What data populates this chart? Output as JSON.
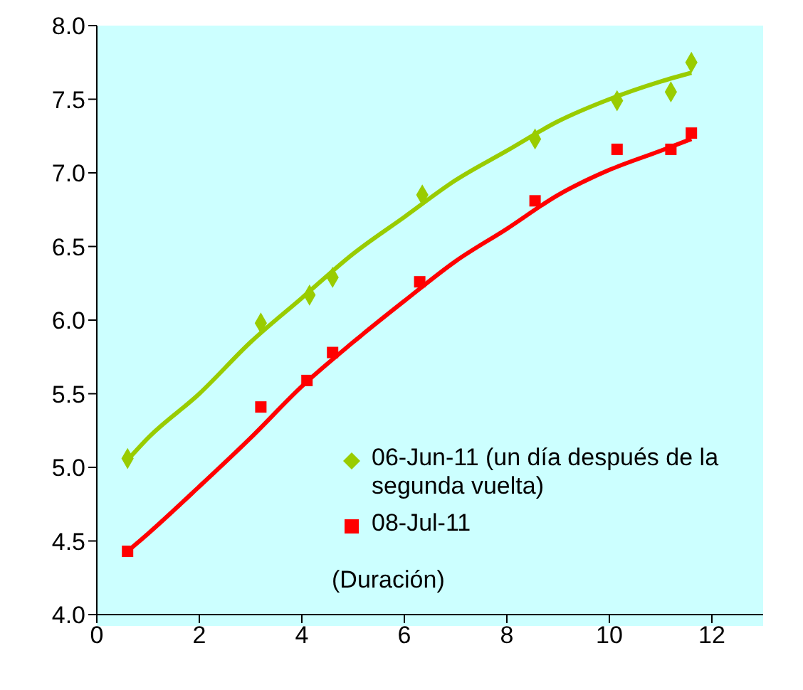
{
  "chart_data": {
    "type": "scatter",
    "xlim": [
      0,
      13
    ],
    "xticks": [
      0,
      2,
      4,
      6,
      8,
      10,
      12
    ],
    "ylim": [
      4.0,
      8.0
    ],
    "yticks": [
      {
        "value": 4.0,
        "label": "4.0"
      },
      {
        "value": 4.5,
        "label": "4.5"
      },
      {
        "value": 5.0,
        "label": "5.0"
      },
      {
        "value": 5.5,
        "label": "5.5"
      },
      {
        "value": 6.0,
        "label": "6.0"
      },
      {
        "value": 6.5,
        "label": "6.5"
      },
      {
        "value": 7.0,
        "label": "7.0"
      },
      {
        "value": 7.5,
        "label": "7.5"
      },
      {
        "value": 8.0,
        "label": "8.0"
      }
    ],
    "grid": false,
    "legend": "bottom right",
    "annotations": [
      "(Duración)"
    ],
    "series": [
      {
        "type": "line",
        "color": "#99cc00",
        "marker": "none",
        "x": [
          0.6,
          1,
          2,
          3,
          4,
          5,
          6,
          7,
          8,
          9,
          10,
          11,
          11.6
        ],
        "values": [
          5.05,
          5.2,
          5.5,
          5.85,
          6.15,
          6.45,
          6.7,
          6.95,
          7.15,
          7.35,
          7.5,
          7.62,
          7.68
        ]
      },
      {
        "type": "line",
        "color": "#ff0000",
        "marker": "none",
        "x": [
          0.6,
          1,
          2,
          3,
          4,
          5,
          6,
          7,
          8,
          9,
          10,
          11,
          11.6
        ],
        "values": [
          4.43,
          4.55,
          4.87,
          5.2,
          5.55,
          5.85,
          6.13,
          6.4,
          6.62,
          6.85,
          7.02,
          7.15,
          7.23
        ]
      },
      {
        "name": "06-Jun-11 (un día después de la segunda vuelta)",
        "color": "#99cc00",
        "marker": "diamond",
        "x": [
          0.6,
          3.2,
          4.15,
          4.6,
          6.35,
          8.55,
          10.15,
          11.2,
          11.6
        ],
        "values": [
          5.06,
          5.98,
          6.17,
          6.29,
          6.85,
          7.23,
          7.49,
          7.55,
          7.75
        ]
      },
      {
        "name": "08-Jul-11",
        "color": "#ff0000",
        "marker": "square",
        "x": [
          0.6,
          3.2,
          4.1,
          4.6,
          6.3,
          8.55,
          10.15,
          11.2,
          11.6
        ],
        "values": [
          4.43,
          5.41,
          5.59,
          5.78,
          6.26,
          6.81,
          7.16,
          7.16,
          7.27
        ]
      }
    ]
  }
}
